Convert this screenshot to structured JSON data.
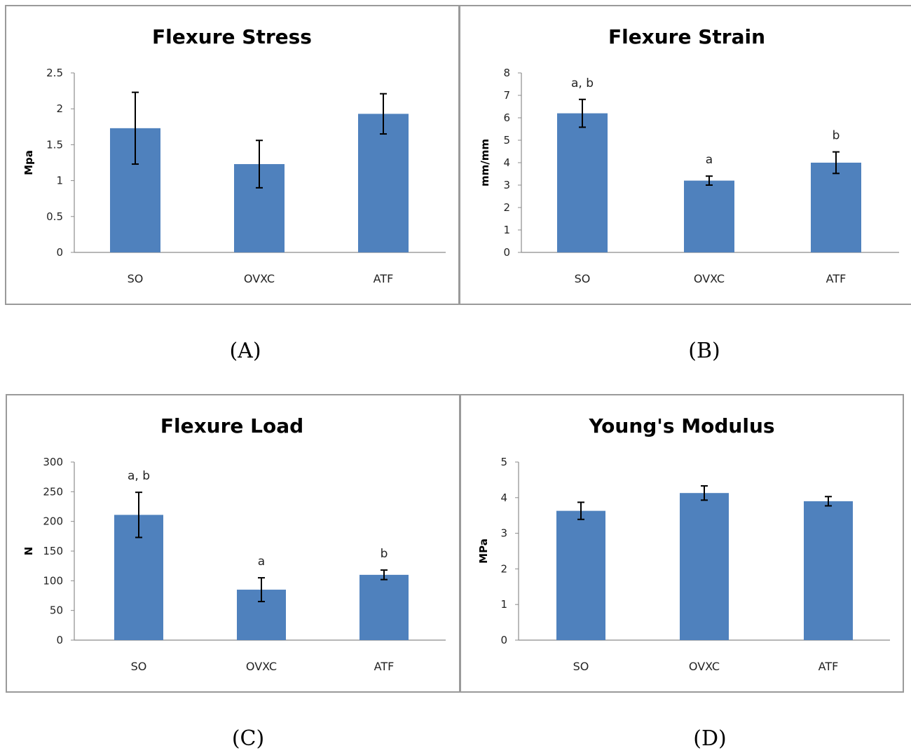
{
  "bar_color": "#4F81BD",
  "chart_data": [
    {
      "type": "bar",
      "panel_label": "(A)",
      "title": "Flexure Stress",
      "ylabel": "Mpa",
      "xlabel": "",
      "categories": [
        "SO",
        "OVXC",
        "ATF"
      ],
      "values": [
        1.73,
        1.23,
        1.93
      ],
      "errors": [
        0.5,
        0.33,
        0.28
      ],
      "significance": [
        "",
        "",
        ""
      ],
      "ylim": [
        0,
        2.5
      ],
      "yticks": [
        "0",
        "0.5",
        "1",
        "1.5",
        "2",
        "2.5"
      ],
      "grid": false,
      "legend": "none"
    },
    {
      "type": "bar",
      "panel_label": "(B)",
      "title": "Flexure Strain",
      "ylabel": "mm/mm",
      "xlabel": "",
      "categories": [
        "SO",
        "OVXC",
        "ATF"
      ],
      "values": [
        6.2,
        3.2,
        4.0
      ],
      "errors": [
        0.62,
        0.2,
        0.48
      ],
      "significance": [
        "a, b",
        "a",
        "b"
      ],
      "ylim": [
        0,
        8
      ],
      "yticks": [
        "0",
        "1",
        "2",
        "3",
        "4",
        "5",
        "6",
        "7",
        "8"
      ],
      "grid": false,
      "legend": "none"
    },
    {
      "type": "bar",
      "panel_label": "(C)",
      "title": "Flexure Load",
      "ylabel": "N",
      "xlabel": "",
      "categories": [
        "SO",
        "OVXC",
        "ATF"
      ],
      "values": [
        211,
        85,
        110
      ],
      "errors": [
        38,
        20,
        8
      ],
      "significance": [
        "a, b",
        "a",
        "b"
      ],
      "ylim": [
        0,
        300
      ],
      "yticks": [
        "0",
        "50",
        "100",
        "150",
        "200",
        "250",
        "300"
      ],
      "grid": false,
      "legend": "none"
    },
    {
      "type": "bar",
      "panel_label": "(D)",
      "title": "Young's Modulus",
      "ylabel": "MPa",
      "xlabel": "",
      "categories": [
        "SO",
        "OVXC",
        "ATF"
      ],
      "values": [
        3.63,
        4.13,
        3.9
      ],
      "errors": [
        0.24,
        0.2,
        0.13
      ],
      "significance": [
        "",
        "",
        ""
      ],
      "ylim": [
        0,
        5
      ],
      "yticks": [
        "0",
        "1",
        "2",
        "3",
        "4",
        "5"
      ],
      "grid": false,
      "legend": "none"
    }
  ]
}
